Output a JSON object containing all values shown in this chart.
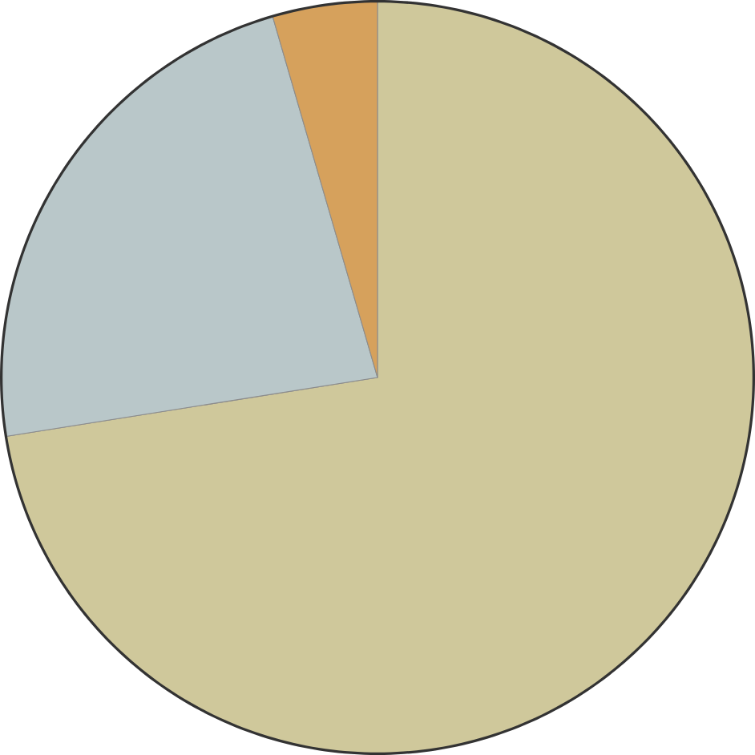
{
  "chart_data": {
    "type": "pie",
    "categories": [
      null,
      null,
      null
    ],
    "values": [
      72.5,
      23,
      4.5
    ],
    "colors": [
      "#cfc89b",
      "#b9c7c9",
      "#d6a15c"
    ]
  }
}
